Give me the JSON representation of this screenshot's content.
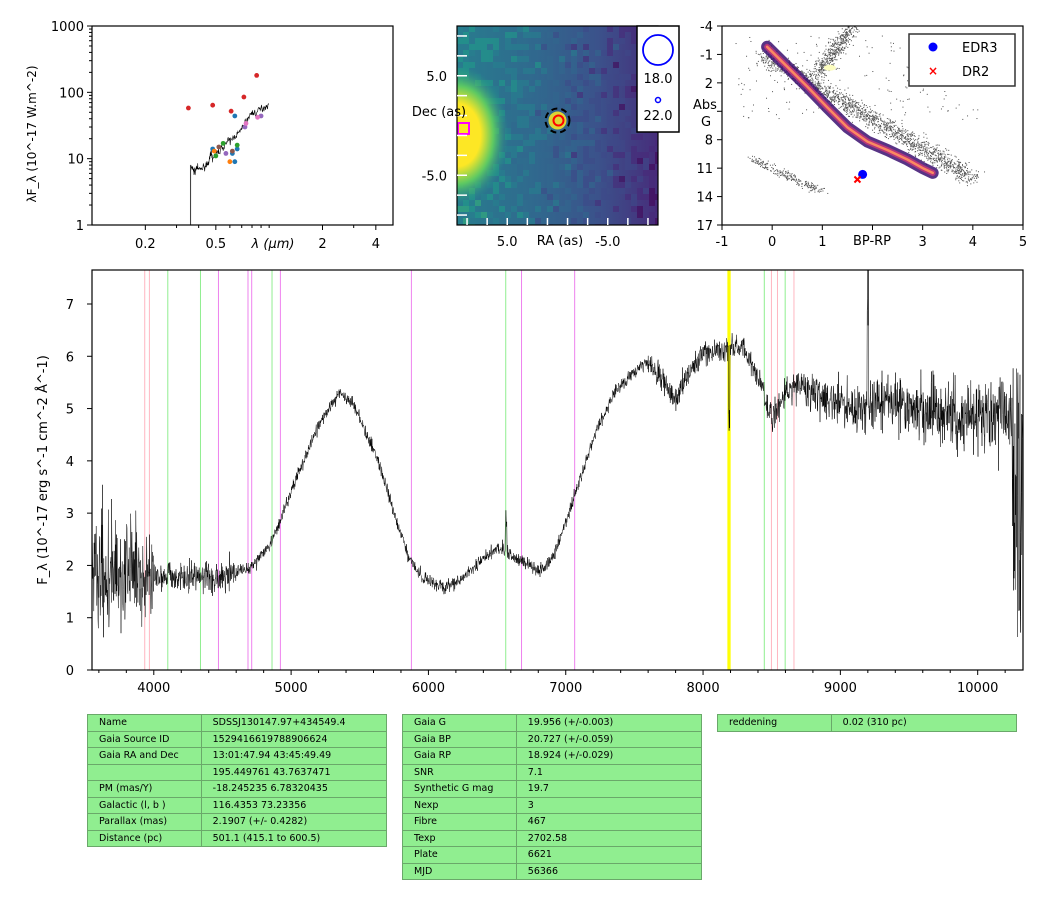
{
  "chart_data": [
    {
      "type": "scatter",
      "panel": "sed",
      "xscale": "log",
      "yscale": "log",
      "xlim": [
        0.1,
        5.0
      ],
      "ylim": [
        1,
        1000
      ],
      "xlabel": "λ (μm)",
      "ylabel": "λF_λ (10^-17 W.m^-2)",
      "xticklabels": [
        "0.2",
        "0.5",
        "2",
        "4"
      ],
      "yticklabels": [
        "1",
        "10",
        "100",
        "1000"
      ],
      "spectrum": [
        [
          0.36,
          1
        ],
        [
          0.36,
          8
        ],
        [
          0.37,
          7
        ],
        [
          0.38,
          6.2
        ],
        [
          0.39,
          7.5
        ],
        [
          0.4,
          6.8
        ],
        [
          0.42,
          7.2
        ],
        [
          0.44,
          8
        ],
        [
          0.46,
          9.5
        ],
        [
          0.47,
          12
        ],
        [
          0.48,
          10
        ],
        [
          0.5,
          11.5
        ],
        [
          0.52,
          13
        ],
        [
          0.55,
          15
        ],
        [
          0.58,
          18
        ],
        [
          0.61,
          19
        ],
        [
          0.64,
          22
        ],
        [
          0.67,
          24
        ],
        [
          0.7,
          28
        ],
        [
          0.73,
          35
        ],
        [
          0.76,
          40
        ],
        [
          0.8,
          50
        ],
        [
          0.84,
          48
        ],
        [
          0.88,
          55
        ],
        [
          0.92,
          58
        ],
        [
          0.96,
          62
        ],
        [
          1.0,
          65
        ]
      ],
      "photometry": [
        {
          "x": 0.35,
          "y": 58,
          "color": "#d62728"
        },
        {
          "x": 0.48,
          "y": 64,
          "color": "#d62728"
        },
        {
          "x": 0.61,
          "y": 52,
          "color": "#d62728"
        },
        {
          "x": 0.72,
          "y": 85,
          "color": "#d62728"
        },
        {
          "x": 0.85,
          "y": 180,
          "color": "#d62728"
        },
        {
          "x": 0.64,
          "y": 44,
          "color": "#1f77b4"
        },
        {
          "x": 0.64,
          "y": 9,
          "color": "#1f77b4"
        },
        {
          "x": 0.66,
          "y": 14,
          "color": "#1f77b4"
        },
        {
          "x": 0.62,
          "y": 12,
          "color": "#1f77b4"
        },
        {
          "x": 0.48,
          "y": 14,
          "color": "#1f77b4"
        },
        {
          "x": 0.5,
          "y": 11,
          "color": "#2ca02c"
        },
        {
          "x": 0.55,
          "y": 17,
          "color": "#2ca02c"
        },
        {
          "x": 0.66,
          "y": 16,
          "color": "#2ca02c"
        },
        {
          "x": 0.57,
          "y": 12,
          "color": "#9467bd"
        },
        {
          "x": 0.73,
          "y": 30,
          "color": "#9467bd"
        },
        {
          "x": 0.9,
          "y": 44,
          "color": "#9467bd"
        },
        {
          "x": 0.49,
          "y": 13,
          "color": "#ff7f0e"
        },
        {
          "x": 0.6,
          "y": 9,
          "color": "#ff7f0e"
        },
        {
          "x": 0.74,
          "y": 34,
          "color": "#e377c2"
        },
        {
          "x": 0.86,
          "y": 42,
          "color": "#e377c2"
        },
        {
          "x": 0.52,
          "y": 15,
          "color": "#8c564b"
        },
        {
          "x": 0.62,
          "y": 13,
          "color": "#8c564b"
        }
      ]
    },
    {
      "type": "heatmap",
      "panel": "image",
      "xlim": [
        10,
        -10
      ],
      "ylim": [
        -10,
        10
      ],
      "xlabel": "RA (as)",
      "ylabel": "Dec (as)",
      "xticklabels": [
        "5.0",
        "-5.0"
      ],
      "yticklabels": [
        "5.0",
        "-5.0"
      ],
      "legend": [
        {
          "label": "18.0"
        },
        {
          "label": "22.0"
        }
      ],
      "target": {
        "ra": 0.0,
        "dec": 0.5
      }
    },
    {
      "type": "scatter",
      "panel": "hr",
      "xlim": [
        -1,
        5
      ],
      "ylim": [
        17,
        -4
      ],
      "xlabel": "BP-RP",
      "ylabel": "Abs G",
      "xticklabels": [
        "-1",
        "0",
        "1",
        "2",
        "3",
        "4",
        "5"
      ],
      "yticklabels": [
        "-4",
        "-1",
        "2",
        "5",
        "8",
        "11",
        "14",
        "17"
      ],
      "legend": [
        {
          "label": "EDR3",
          "color": "#0000ff",
          "marker": "circle"
        },
        {
          "label": "DR2",
          "color": "#ff0000",
          "marker": "x"
        }
      ],
      "points": [
        {
          "name": "EDR3",
          "x": 1.803,
          "y": 11.66
        },
        {
          "name": "DR2",
          "x": 1.7,
          "y": 12.2
        }
      ]
    },
    {
      "type": "line",
      "panel": "spectrum",
      "xlim": [
        3550,
        10330
      ],
      "ylim": [
        0,
        7.65
      ],
      "ylabel": "F_λ (10^-17 erg s^-1 cm^-2 Å^-1)",
      "xticklabels": [
        "4000",
        "5000",
        "6000",
        "7000",
        "8000",
        "9000",
        "10000"
      ],
      "yticklabels": [
        "0",
        "1",
        "2",
        "3",
        "4",
        "5",
        "6",
        "7"
      ],
      "continuum": [
        [
          3550,
          2.0
        ],
        [
          3800,
          1.9
        ],
        [
          4100,
          1.8
        ],
        [
          4400,
          1.75
        ],
        [
          4700,
          1.95
        ],
        [
          4850,
          2.4
        ],
        [
          5000,
          3.4
        ],
        [
          5150,
          4.4
        ],
        [
          5250,
          4.9
        ],
        [
          5350,
          5.3
        ],
        [
          5450,
          5.1
        ],
        [
          5550,
          4.5
        ],
        [
          5650,
          3.9
        ],
        [
          5750,
          3.0
        ],
        [
          5850,
          2.2
        ],
        [
          5950,
          1.8
        ],
        [
          6100,
          1.55
        ],
        [
          6250,
          1.75
        ],
        [
          6400,
          2.15
        ],
        [
          6500,
          2.35
        ],
        [
          6600,
          2.2
        ],
        [
          6700,
          2.05
        ],
        [
          6800,
          1.9
        ],
        [
          6900,
          2.1
        ],
        [
          7050,
          3.2
        ],
        [
          7200,
          4.4
        ],
        [
          7350,
          5.3
        ],
        [
          7500,
          5.7
        ],
        [
          7600,
          5.9
        ],
        [
          7700,
          5.6
        ],
        [
          7800,
          5.15
        ],
        [
          7900,
          5.7
        ],
        [
          8000,
          6.05
        ],
        [
          8150,
          6.15
        ],
        [
          8300,
          6.2
        ],
        [
          8400,
          5.55
        ],
        [
          8500,
          4.8
        ],
        [
          8600,
          5.3
        ],
        [
          8700,
          5.5
        ],
        [
          8900,
          5.2
        ],
        [
          9100,
          5.0
        ],
        [
          9300,
          5.15
        ],
        [
          9500,
          5.0
        ],
        [
          9700,
          4.95
        ],
        [
          9900,
          4.9
        ],
        [
          10100,
          4.9
        ],
        [
          10300,
          4.9
        ]
      ],
      "lines": [
        {
          "x": 3934,
          "color": "#ffb6c1"
        },
        {
          "x": 3968,
          "color": "#ffb6c1"
        },
        {
          "x": 4102,
          "color": "#90ee90"
        },
        {
          "x": 4340,
          "color": "#90ee90"
        },
        {
          "x": 4471,
          "color": "#ee82ee"
        },
        {
          "x": 4686,
          "color": "#ee82ee"
        },
        {
          "x": 4713,
          "color": "#ee82ee"
        },
        {
          "x": 4861,
          "color": "#90ee90"
        },
        {
          "x": 4922,
          "color": "#ee82ee"
        },
        {
          "x": 5876,
          "color": "#ee82ee"
        },
        {
          "x": 6563,
          "color": "#90ee90"
        },
        {
          "x": 6678,
          "color": "#ee82ee"
        },
        {
          "x": 7065,
          "color": "#ee82ee"
        },
        {
          "x": 8183,
          "color": "#ffff00"
        },
        {
          "x": 8195,
          "color": "#ffff00"
        },
        {
          "x": 8446,
          "color": "#90ee90"
        },
        {
          "x": 8498,
          "color": "#ffb6c1"
        },
        {
          "x": 8542,
          "color": "#ffb6c1"
        },
        {
          "x": 8598,
          "color": "#90ee90"
        },
        {
          "x": 8662,
          "color": "#ffb6c1"
        }
      ]
    }
  ],
  "table_left": [
    [
      "Name",
      "SDSSJ130147.97+434549.4"
    ],
    [
      "Gaia Source ID",
      "1529416619788906624"
    ],
    [
      "Gaia RA and Dec",
      "13:01:47.94    43:45:49.49"
    ],
    [
      "",
      "195.449761    43.7637471"
    ],
    [
      "PM (mas/Y)",
      "-18.245235    6.78320435"
    ],
    [
      "Galactic (l, b )",
      "116.4353    73.23356"
    ],
    [
      "Parallax (mas)",
      "2.1907 (+/- 0.4282)"
    ],
    [
      "Distance (pc)",
      "501.1 (415.1 to 600.5)"
    ]
  ],
  "table_mid": [
    [
      "Gaia G",
      "19.956 (+/-0.003)"
    ],
    [
      "Gaia BP",
      "20.727 (+/-0.059)"
    ],
    [
      "Gaia RP",
      "18.924 (+/-0.029)"
    ],
    [
      "SNR",
      "7.1"
    ],
    [
      "Synthetic G mag",
      "19.7"
    ],
    [
      "Nexp",
      "3"
    ],
    [
      "Fibre",
      "467"
    ],
    [
      "Texp",
      "2702.58"
    ],
    [
      "Plate",
      "6621"
    ],
    [
      "MJD",
      "56366"
    ]
  ],
  "table_right": [
    [
      "reddening",
      "0.02 (310 pc)"
    ]
  ]
}
